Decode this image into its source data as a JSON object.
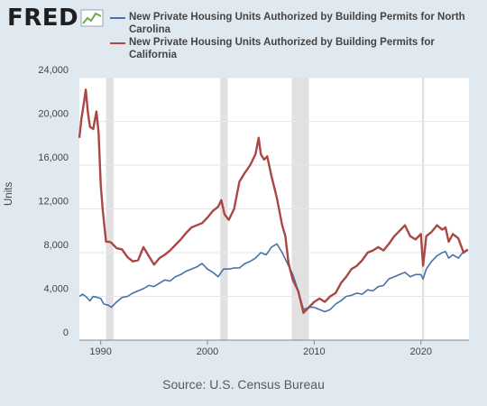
{
  "header": {
    "logo_text": "FRED",
    "logo_icon": "fred-trend-icon"
  },
  "footer": {
    "source": "Source: U.S. Census Bureau"
  },
  "colors": {
    "background": "#e1e9f0",
    "plot_background": "#ffffff",
    "recession_band": "#e1e1e1",
    "nc_series": "#4572a7",
    "ca_series": "#aa4643"
  },
  "chart_data": {
    "type": "line",
    "title": "",
    "xlabel": "",
    "ylabel": "Units",
    "xlim": [
      1988,
      2024.5
    ],
    "ylim": [
      0,
      24000
    ],
    "y_ticks": [
      0,
      4000,
      8000,
      12000,
      16000,
      20000,
      24000
    ],
    "y_tick_labels": [
      "0",
      "4,000",
      "8,000",
      "12,000",
      "16,000",
      "20,000",
      "24,000"
    ],
    "x_ticks": [
      1990,
      2000,
      2010,
      2020
    ],
    "x_tick_labels": [
      "1990",
      "2000",
      "2010",
      "2020"
    ],
    "grid": "horizontal",
    "legend_position": "top",
    "recessions": [
      [
        1990.5,
        1991.2
      ],
      [
        2001.2,
        2001.9
      ],
      [
        2007.9,
        2009.5
      ],
      [
        2020.1,
        2020.3
      ]
    ],
    "series": [
      {
        "name": "New Private Housing Units Authorized by Building Permits for North Carolina",
        "color": "#4572a7",
        "x": [
          1988.0,
          1988.3,
          1988.6,
          1989.0,
          1989.3,
          1989.7,
          1990.0,
          1990.3,
          1990.7,
          1991.0,
          1991.5,
          1992.0,
          1992.5,
          1993.0,
          1993.5,
          1994.0,
          1994.5,
          1995.0,
          1995.5,
          1996.0,
          1996.5,
          1997.0,
          1997.5,
          1998.0,
          1998.5,
          1999.0,
          1999.5,
          2000.0,
          2000.5,
          2001.0,
          2001.5,
          2002.0,
          2002.5,
          2003.0,
          2003.5,
          2004.0,
          2004.5,
          2005.0,
          2005.5,
          2006.0,
          2006.5,
          2007.0,
          2007.5,
          2008.0,
          2008.5,
          2009.0,
          2009.5,
          2010.0,
          2010.5,
          2011.0,
          2011.5,
          2012.0,
          2012.5,
          2013.0,
          2013.5,
          2014.0,
          2014.5,
          2015.0,
          2015.5,
          2016.0,
          2016.5,
          2017.0,
          2017.5,
          2018.0,
          2018.5,
          2019.0,
          2019.5,
          2020.0,
          2020.2,
          2020.5,
          2021.0,
          2021.5,
          2022.0,
          2022.3,
          2022.6,
          2023.0,
          2023.5,
          2024.0,
          2024.4
        ],
        "y": [
          4000,
          4200,
          4000,
          3600,
          4000,
          3900,
          3800,
          3300,
          3200,
          3000,
          3500,
          3900,
          4000,
          4300,
          4500,
          4700,
          5000,
          4900,
          5200,
          5500,
          5400,
          5800,
          6000,
          6300,
          6500,
          6700,
          7000,
          6500,
          6200,
          5800,
          6500,
          6500,
          6600,
          6600,
          7000,
          7200,
          7500,
          8000,
          7800,
          8500,
          8800,
          8000,
          7000,
          6000,
          4500,
          2800,
          3000,
          3000,
          2800,
          2600,
          2800,
          3300,
          3600,
          4000,
          4100,
          4300,
          4200,
          4600,
          4500,
          4900,
          5000,
          5600,
          5800,
          6000,
          6200,
          5800,
          6000,
          6000,
          5600,
          6500,
          7200,
          7700,
          8000,
          8100,
          7500,
          7800,
          7500,
          8100,
          8200
        ]
      },
      {
        "name": "New Private Housing Units Authorized by Building Permits for California",
        "color": "#aa4643",
        "x": [
          1988.0,
          1988.2,
          1988.4,
          1988.6,
          1988.8,
          1989.0,
          1989.3,
          1989.6,
          1989.8,
          1990.0,
          1990.2,
          1990.5,
          1990.8,
          1991.0,
          1991.5,
          1992.0,
          1992.5,
          1993.0,
          1993.5,
          1994.0,
          1994.5,
          1995.0,
          1995.5,
          1996.0,
          1996.5,
          1997.0,
          1997.5,
          1998.0,
          1998.5,
          1999.0,
          1999.5,
          2000.0,
          2000.5,
          2001.0,
          2001.3,
          2001.6,
          2002.0,
          2002.5,
          2003.0,
          2003.5,
          2004.0,
          2004.5,
          2004.8,
          2005.0,
          2005.3,
          2005.6,
          2006.0,
          2006.5,
          2007.0,
          2007.3,
          2007.6,
          2008.0,
          2008.5,
          2009.0,
          2009.5,
          2010.0,
          2010.5,
          2011.0,
          2011.5,
          2012.0,
          2012.5,
          2013.0,
          2013.5,
          2014.0,
          2014.5,
          2015.0,
          2015.5,
          2016.0,
          2016.5,
          2017.0,
          2017.5,
          2018.0,
          2018.5,
          2019.0,
          2019.5,
          2020.0,
          2020.2,
          2020.5,
          2021.0,
          2021.5,
          2022.0,
          2022.3,
          2022.6,
          2023.0,
          2023.5,
          2024.0,
          2024.4
        ],
        "y": [
          18500,
          20300,
          21500,
          22900,
          20800,
          19500,
          19300,
          20900,
          19000,
          14200,
          11800,
          9000,
          9000,
          8900,
          8400,
          8300,
          7600,
          7200,
          7300,
          8500,
          7700,
          6900,
          7500,
          7800,
          8200,
          8700,
          9200,
          9800,
          10300,
          10500,
          10700,
          11200,
          11800,
          12200,
          12800,
          11500,
          11000,
          12000,
          14500,
          15300,
          16000,
          17000,
          18500,
          17000,
          16500,
          16800,
          15000,
          13000,
          10500,
          9500,
          7000,
          5500,
          4500,
          2500,
          3000,
          3500,
          3800,
          3500,
          4000,
          4300,
          5200,
          5800,
          6500,
          6800,
          7300,
          8000,
          8200,
          8500,
          8200,
          8800,
          9500,
          10000,
          10500,
          9500,
          9200,
          9700,
          6800,
          9500,
          9900,
          10500,
          10100,
          10300,
          9000,
          9700,
          9300,
          8000,
          8300
        ]
      }
    ]
  }
}
